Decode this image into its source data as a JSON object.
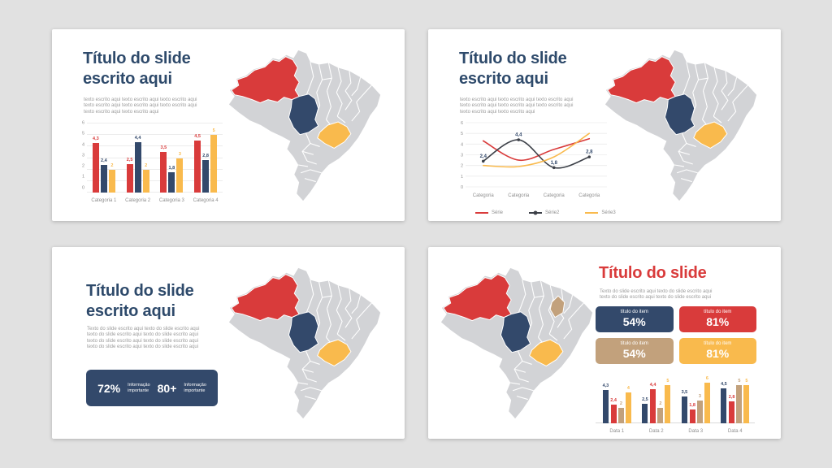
{
  "colors": {
    "page_bg": "#e1e1e1",
    "slide_bg": "#ffffff",
    "navy": "#33496b",
    "navy_title": "#2e4a6b",
    "red": "#d93b3b",
    "yellow": "#f9ba4d",
    "tan": "#c2a17c",
    "dark": "#3c4048",
    "map_gray": "#d2d3d6",
    "text_gray": "#9b9b9b",
    "axis_gray": "#8f8f8f",
    "grid": "#ececec"
  },
  "slides": {
    "slide1": {
      "title": "Título do slide escrito aqui",
      "body": [
        "texto escrito aqui texto escrito aqui texto escrito aqui",
        "texto escrito aqui texto escrito aqui texto escrito aqui",
        "texto escrito aqui texto escrito aqui"
      ],
      "map": [
        "red",
        "navy",
        "yellow"
      ]
    },
    "slide2": {
      "title": "Título do slide escrito aqui",
      "body": [
        "texto escrito aqui texto escrito aqui texto escrito aqui",
        "texto escrito aqui texto escrito aqui texto escrito aqui",
        "texto escrito aqui texto escrito aqui"
      ],
      "map": [
        "red",
        "navy",
        "yellow"
      ]
    },
    "slide3": {
      "title": "Título do slide escrito aqui",
      "body": [
        "Texto do slide escrito aqui texto do slide escrito aqui",
        "texto do slide escrito aqui texto do slide escrito aqui",
        "texto do slide escrito aqui texto do slide escrito aqui",
        "texto do slide escrito aqui texto do slide escrito aqui"
      ],
      "stats": [
        {
          "value": "72%",
          "label": "Informação\nimportante"
        },
        {
          "value": "80+",
          "label": "Informação\nimportante"
        }
      ],
      "map": [
        "red",
        "navy",
        "yellow"
      ]
    },
    "slide4": {
      "title": "Título do slide",
      "body": [
        "Texto do slide escrito aqui texto do slide escrito aqui",
        "texto do slide escrito aqui texto do slide escrito aqui"
      ],
      "items": [
        {
          "label": "título do item",
          "value": "54%",
          "color_key": "navy"
        },
        {
          "label": "título do item",
          "value": "81%",
          "color_key": "red"
        },
        {
          "label": "título do item",
          "value": "54%",
          "color_key": "tan"
        },
        {
          "label": "título do item",
          "value": "81%",
          "color_key": "yellow"
        }
      ],
      "map": [
        "red",
        "navy",
        "yellow",
        "tan"
      ]
    }
  },
  "chart_data": [
    {
      "type": "bar",
      "categories": [
        "Categoria 1",
        "Categoria 2",
        "Categoria 3",
        "Categoria 4"
      ],
      "series": [
        {
          "color_key": "red",
          "values": [
            4.3,
            2.5,
            3.5,
            4.5
          ],
          "labels": [
            "4,3",
            "2,5",
            "3,5",
            "4,5"
          ]
        },
        {
          "color_key": "navy",
          "values": [
            2.4,
            4.4,
            1.8,
            2.8
          ],
          "labels": [
            "2,4",
            "4,4",
            "1,8",
            "2,8"
          ]
        },
        {
          "color_key": "yellow",
          "values": [
            2,
            2,
            3,
            5
          ],
          "labels": [
            "2",
            "2",
            "3",
            "5"
          ]
        }
      ],
      "ylim": [
        0,
        6
      ],
      "yticks": [
        0,
        1,
        2,
        3,
        4,
        5,
        6
      ],
      "grid": true,
      "legend": false
    },
    {
      "type": "line",
      "categories": [
        "Categoria",
        "Categoria",
        "Categoria",
        "Categoria"
      ],
      "series": [
        {
          "name": "Série",
          "color_key": "red",
          "values": [
            4.3,
            2.5,
            3.5,
            4.5
          ],
          "labels": null,
          "markers": false
        },
        {
          "name": "Série2",
          "color_key": "dark",
          "values": [
            2.4,
            4.4,
            1.8,
            2.8
          ],
          "labels": [
            "2,4",
            "4,4",
            "1,8",
            "2,8"
          ],
          "markers": true
        },
        {
          "name": "Série3",
          "color_key": "yellow",
          "values": [
            2,
            1.9,
            2.8,
            5
          ],
          "labels": null,
          "markers": false
        }
      ],
      "ylim": [
        0,
        6
      ],
      "yticks": [
        0,
        1,
        2,
        3,
        4,
        5,
        6
      ],
      "grid": true,
      "legend": true,
      "legend_position": "bottom"
    },
    {
      "type": "bar",
      "categories": [
        "Data 1",
        "Data 2",
        "Data 3",
        "Data 4"
      ],
      "series": [
        {
          "color_key": "navy",
          "values": [
            4.3,
            2.5,
            3.5,
            4.5
          ],
          "labels": [
            "4,3",
            "2,5",
            "3,5",
            "4,5"
          ]
        },
        {
          "color_key": "red",
          "values": [
            2.4,
            4.4,
            1.8,
            2.8
          ],
          "labels": [
            "2,4",
            "4,4",
            "1,8",
            "2,8"
          ]
        },
        {
          "color_key": "tan",
          "values": [
            2,
            2,
            3,
            5
          ],
          "labels": [
            "2",
            "2",
            "3",
            "5"
          ]
        },
        {
          "color_key": "yellow",
          "values": [
            4,
            5,
            6,
            5
          ],
          "labels": [
            "4",
            "5",
            "6",
            "5"
          ]
        }
      ],
      "ylim": [
        0,
        6
      ],
      "yticks": null,
      "grid": false,
      "baseline": true,
      "legend": false
    }
  ]
}
